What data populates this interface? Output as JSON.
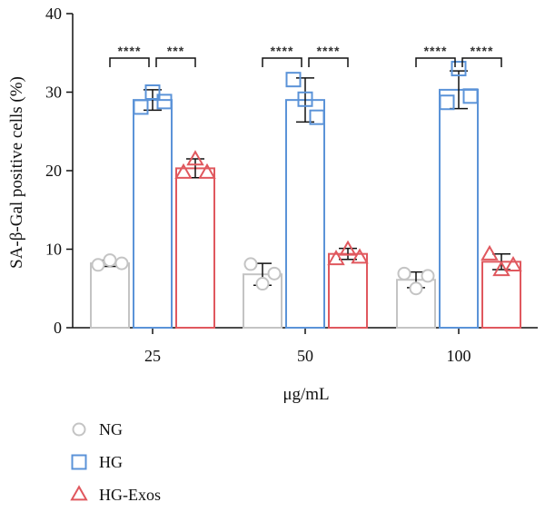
{
  "chart_data": {
    "type": "bar",
    "ylabel": "SA-β-Gal positive cells (%)",
    "xlabel": "μg/mL",
    "ylim": [
      0,
      40
    ],
    "yticks": [
      0,
      10,
      20,
      30,
      40
    ],
    "categories": [
      "25",
      "50",
      "100"
    ],
    "legend_position": "bottom-left",
    "series": [
      {
        "name": "NG",
        "color": "#c4c4c4",
        "marker": "circle",
        "values": [
          8.2,
          6.8,
          6.1
        ],
        "error": [
          0.4,
          1.4,
          1.0
        ],
        "points": [
          [
            8.0,
            8.6,
            8.2
          ],
          [
            8.1,
            5.6,
            6.9
          ],
          [
            6.9,
            5.0,
            6.6
          ]
        ]
      },
      {
        "name": "HG",
        "color": "#5b93d8",
        "marker": "square",
        "values": [
          29.0,
          29.0,
          30.3
        ],
        "error": [
          1.3,
          2.8,
          2.4
        ],
        "points": [
          [
            28.1,
            30.0,
            28.8
          ],
          [
            31.6,
            29.1,
            26.8
          ],
          [
            28.7,
            33.0,
            29.5
          ]
        ]
      },
      {
        "name": "HG-Exos",
        "color": "#e0585e",
        "marker": "triangle",
        "values": [
          20.3,
          9.4,
          8.4
        ],
        "error": [
          1.2,
          0.7,
          1.0
        ],
        "points": [
          [
            19.7,
            21.4,
            19.7
          ],
          [
            8.7,
            9.9,
            8.9
          ],
          [
            9.3,
            7.3,
            7.9
          ]
        ]
      }
    ],
    "significance": [
      [
        {
          "label": "****"
        },
        {
          "label": "***"
        }
      ],
      [
        {
          "label": "****"
        },
        {
          "label": "****"
        }
      ],
      [
        {
          "label": "****"
        },
        {
          "label": "****"
        }
      ]
    ]
  }
}
